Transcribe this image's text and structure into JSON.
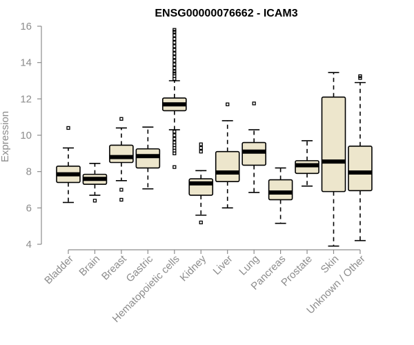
{
  "chart_data": {
    "type": "boxplot",
    "title": "ENSG00000076662 - ICAM3",
    "ylabel": "Expression",
    "xlabel": "",
    "ylim": [
      4,
      16
    ],
    "yticks": [
      4,
      6,
      8,
      10,
      12,
      14,
      16
    ],
    "box_fill": "#ede6cc",
    "box_stroke": "#000000",
    "median_color": "#000000",
    "axis_color": "#8c8c8c",
    "categories": [
      "Bladder",
      "Brain",
      "Breast",
      "Gastric",
      "Hematopoietic cells",
      "Kidney",
      "Liver",
      "Lung",
      "Pancreas",
      "Prostate",
      "Skin",
      "Unknown / Other"
    ],
    "series": [
      {
        "name": "Bladder",
        "whisker_low": 6.3,
        "q1": 7.4,
        "median": 7.85,
        "q3": 8.3,
        "whisker_high": 9.3,
        "outliers": [
          10.4
        ]
      },
      {
        "name": "Brain",
        "whisker_low": 6.7,
        "q1": 7.3,
        "median": 7.6,
        "q3": 7.85,
        "whisker_high": 8.45,
        "outliers": [
          6.4
        ]
      },
      {
        "name": "Breast",
        "whisker_low": 7.5,
        "q1": 8.5,
        "median": 8.8,
        "q3": 9.45,
        "whisker_high": 10.4,
        "outliers": [
          10.9,
          7.0,
          6.45
        ]
      },
      {
        "name": "Gastric",
        "whisker_low": 7.05,
        "q1": 8.2,
        "median": 8.85,
        "q3": 9.25,
        "whisker_high": 10.45,
        "outliers": []
      },
      {
        "name": "Hematopoietic cells",
        "whisker_low": 10.3,
        "q1": 11.35,
        "median": 11.7,
        "q3": 12.05,
        "whisker_high": 13.0,
        "outliers": [
          15.8,
          15.7,
          15.5,
          15.3,
          15.1,
          14.9,
          14.7,
          14.5,
          14.3,
          14.1,
          13.9,
          13.7,
          13.5,
          13.4,
          13.25,
          13.1,
          10.2,
          10.0,
          9.8,
          9.6,
          9.45,
          9.3,
          9.15,
          9.0,
          8.25
        ]
      },
      {
        "name": "Kidney",
        "whisker_low": 5.6,
        "q1": 6.7,
        "median": 7.35,
        "q3": 7.6,
        "whisker_high": 8.05,
        "outliers": [
          9.5,
          9.3,
          9.1,
          5.2
        ]
      },
      {
        "name": "Liver",
        "whisker_low": 6.0,
        "q1": 7.45,
        "median": 7.95,
        "q3": 9.1,
        "whisker_high": 10.8,
        "outliers": [
          11.7
        ]
      },
      {
        "name": "Lung",
        "whisker_low": 6.85,
        "q1": 8.35,
        "median": 9.1,
        "q3": 9.6,
        "whisker_high": 10.3,
        "outliers": [
          11.75
        ]
      },
      {
        "name": "Pancreas",
        "whisker_low": 5.15,
        "q1": 6.45,
        "median": 6.85,
        "q3": 7.55,
        "whisker_high": 8.2,
        "outliers": []
      },
      {
        "name": "Prostate",
        "whisker_low": 7.2,
        "q1": 7.9,
        "median": 8.35,
        "q3": 8.6,
        "whisker_high": 9.7,
        "outliers": []
      },
      {
        "name": "Skin",
        "whisker_low": 3.9,
        "q1": 6.9,
        "median": 8.55,
        "q3": 12.1,
        "whisker_high": 13.45,
        "outliers": []
      },
      {
        "name": "Unknown / Other",
        "whisker_low": 4.2,
        "q1": 6.95,
        "median": 7.95,
        "q3": 9.4,
        "whisker_high": 12.9,
        "outliers": [
          13.15,
          13.25
        ]
      }
    ]
  }
}
